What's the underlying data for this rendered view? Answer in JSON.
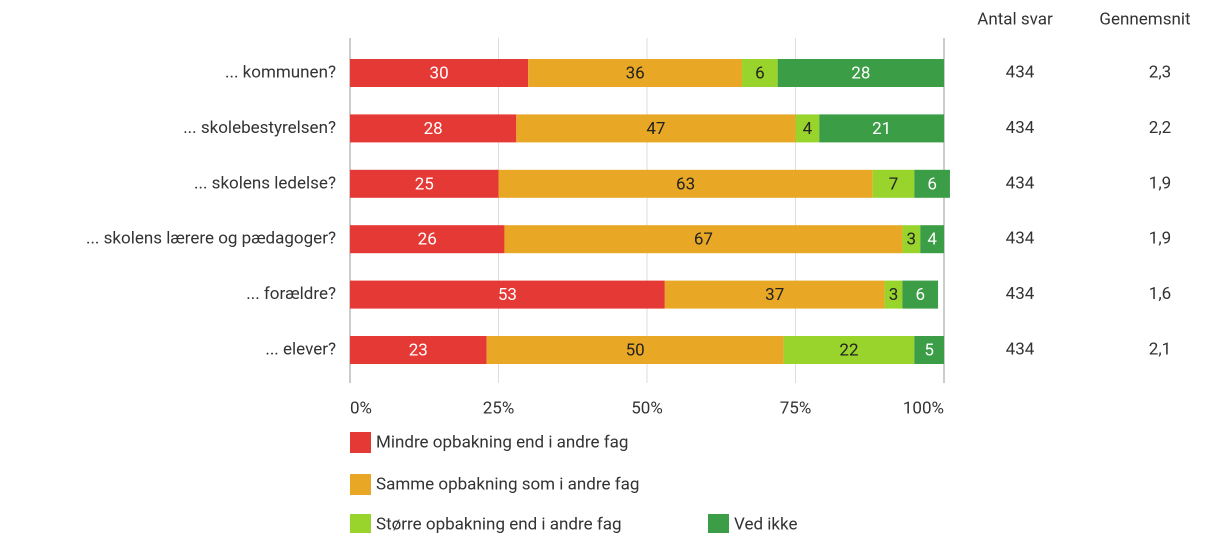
{
  "chart_data": {
    "type": "stacked_bar_horizontal",
    "categories": [
      "... kommunen?",
      "... skolebestyrelsen?",
      "... skolens ledelse?",
      "... skolens lærere og pædagoger?",
      "... forældre?",
      "... elever?"
    ],
    "series": [
      {
        "name": "Mindre opbakning end i andre fag",
        "color": "#e53935",
        "label_color": "#ffffff",
        "values": [
          30,
          28,
          25,
          26,
          53,
          23
        ]
      },
      {
        "name": "Samme opbakning som i andre fag",
        "color": "#e8a825",
        "label_color": "#222222",
        "values": [
          36,
          47,
          63,
          67,
          37,
          50
        ]
      },
      {
        "name": "Større opbakning end i andre fag",
        "color": "#98d42c",
        "label_color": "#222222",
        "values": [
          6,
          4,
          7,
          3,
          3,
          22
        ]
      },
      {
        "name": "Ved ikke",
        "color": "#3b9d45",
        "label_color": "#ffffff",
        "values": [
          28,
          21,
          6,
          4,
          6,
          5
        ]
      }
    ],
    "xlim": [
      0,
      100
    ],
    "xticks": [
      {
        "value": 0,
        "label": "0%"
      },
      {
        "value": 25,
        "label": "25%"
      },
      {
        "value": 50,
        "label": "50%"
      },
      {
        "value": 75,
        "label": "75%"
      },
      {
        "value": 100,
        "label": "100%"
      }
    ],
    "grid": true,
    "columns": [
      {
        "name": "Antal svar",
        "values": [
          434,
          434,
          434,
          434,
          434,
          434
        ]
      },
      {
        "name": "Gennemsnit",
        "values": [
          2.3,
          2.2,
          1.9,
          1.9,
          1.6,
          2.1
        ],
        "value_labels": [
          "2,3",
          "2,2",
          "1,9",
          "1,9",
          "1,6",
          "2,1"
        ]
      }
    ]
  }
}
